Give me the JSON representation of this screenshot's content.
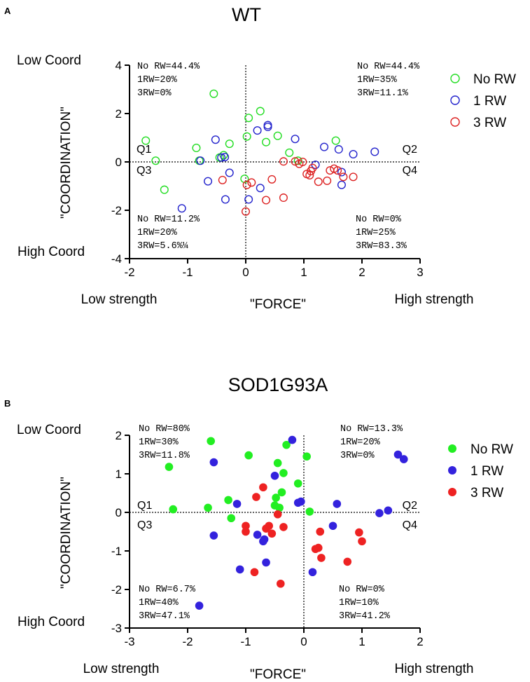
{
  "chart_data": [
    {
      "panel": "A",
      "type": "scatter",
      "title": "WT",
      "marker_style": "open",
      "xlabel": "\"FORCE\"",
      "ylabel": "\"COORDINATION\"",
      "xlim": [
        -2,
        3
      ],
      "ylim": [
        -4,
        4
      ],
      "xticks": [
        "-2",
        "-1",
        "0",
        "1",
        "2",
        "3"
      ],
      "yticks": [
        "-4",
        "-2",
        "0",
        "2",
        "4"
      ],
      "xtick_values": [
        -2,
        -1,
        0,
        1,
        2,
        3
      ],
      "ytick_values": [
        -4,
        -2,
        0,
        2,
        4
      ],
      "left_x_label": "Low strength",
      "right_x_label": "High strength",
      "top_y_label": "Low Coord",
      "bottom_y_label": "High Coord",
      "quadrants": {
        "q1": "Q1",
        "q2": "Q2",
        "q3": "Q3",
        "q4": "Q4"
      },
      "quadrant_stats": {
        "top_left": [
          "No RW=44.4%",
          "1RW=20%",
          "3RW=0%"
        ],
        "top_right": [
          "No RW=44.4%",
          "1RW=35%",
          "3RW=11.1%"
        ],
        "bottom_left": [
          "No RW=11.2%",
          "1RW=20%",
          "3RW=5.6%¼"
        ],
        "bottom_right": [
          "No RW=0%",
          "1RW=25%",
          "3RW=83.3%"
        ]
      },
      "series": [
        {
          "name": "No RW",
          "color": "#22dd22",
          "points": [
            [
              -1.72,
              0.88
            ],
            [
              -1.55,
              0.05
            ],
            [
              -1.4,
              -1.15
            ],
            [
              -0.85,
              0.58
            ],
            [
              -0.8,
              0.05
            ],
            [
              -0.55,
              2.82
            ],
            [
              -0.45,
              0.18
            ],
            [
              -0.38,
              0.28
            ],
            [
              -0.28,
              0.75
            ],
            [
              -0.02,
              -0.7
            ],
            [
              0.02,
              1.05
            ],
            [
              0.05,
              1.82
            ],
            [
              0.25,
              2.1
            ],
            [
              0.35,
              0.82
            ],
            [
              0.55,
              1.08
            ],
            [
              0.75,
              0.38
            ],
            [
              0.9,
              0.05
            ],
            [
              1.55,
              0.88
            ]
          ]
        },
        {
          "name": "1 RW",
          "color": "#2222cc",
          "points": [
            [
              -1.1,
              -1.92
            ],
            [
              -0.65,
              -0.8
            ],
            [
              -0.52,
              0.92
            ],
            [
              -0.42,
              0.18
            ],
            [
              -0.36,
              0.2
            ],
            [
              -0.35,
              -1.55
            ],
            [
              -0.28,
              -0.45
            ],
            [
              -0.78,
              0.05
            ],
            [
              0.05,
              -1.55
            ],
            [
              0.2,
              1.3
            ],
            [
              0.25,
              -1.08
            ],
            [
              0.38,
              1.52
            ],
            [
              0.38,
              1.45
            ],
            [
              0.85,
              0.95
            ],
            [
              1.2,
              -0.12
            ],
            [
              1.35,
              0.62
            ],
            [
              1.6,
              0.52
            ],
            [
              1.65,
              -0.42
            ],
            [
              1.65,
              -0.95
            ],
            [
              1.85,
              0.32
            ],
            [
              2.22,
              0.42
            ]
          ]
        },
        {
          "name": "3 RW",
          "color": "#dd2222",
          "points": [
            [
              -0.4,
              -0.75
            ],
            [
              0.0,
              -2.05
            ],
            [
              0.02,
              -0.95
            ],
            [
              0.1,
              -0.85
            ],
            [
              0.35,
              -1.58
            ],
            [
              0.45,
              -0.72
            ],
            [
              0.65,
              -1.48
            ],
            [
              0.65,
              0.02
            ],
            [
              0.85,
              0.02
            ],
            [
              0.92,
              -0.08
            ],
            [
              0.98,
              0.0
            ],
            [
              1.05,
              -0.5
            ],
            [
              1.1,
              -0.55
            ],
            [
              1.12,
              -0.38
            ],
            [
              1.15,
              -0.25
            ],
            [
              1.25,
              -0.82
            ],
            [
              1.4,
              -0.78
            ],
            [
              1.45,
              -0.35
            ],
            [
              1.52,
              -0.28
            ],
            [
              1.58,
              -0.35
            ],
            [
              1.68,
              -0.62
            ],
            [
              1.85,
              -0.62
            ]
          ]
        }
      ]
    },
    {
      "panel": "B",
      "type": "scatter",
      "title": "SOD1G93A",
      "marker_style": "filled",
      "xlabel": "\"FORCE\"",
      "ylabel": "\"COORDINATION\"",
      "xlim": [
        -3,
        2
      ],
      "ylim": [
        -3,
        2
      ],
      "xticks": [
        "-3",
        "-2",
        "-1",
        "0",
        "1",
        "2"
      ],
      "yticks": [
        "-3",
        "-2",
        "-1",
        "0",
        "1",
        "2"
      ],
      "xtick_values": [
        -3,
        -2,
        -1,
        0,
        1,
        2
      ],
      "ytick_values": [
        -3,
        -2,
        -1,
        0,
        1,
        2
      ],
      "left_x_label": "Low strength",
      "right_x_label": "High strength",
      "top_y_label": "Low Coord",
      "bottom_y_label": "High Coord",
      "quadrants": {
        "q1": "Q1",
        "q2": "Q2",
        "q3": "Q3",
        "q4": "Q4"
      },
      "quadrant_stats": {
        "top_left": [
          "No RW=80%",
          "1RW=30%",
          "3RW=11.8%"
        ],
        "top_right": [
          "No RW=13.3%",
          "1RW=20%",
          "3RW=0%"
        ],
        "bottom_left": [
          "No RW=6.7%",
          "1RW=40%",
          "3RW=47.1%"
        ],
        "bottom_right": [
          "No RW=0%",
          "1RW=10%",
          "3RW=41.2%"
        ]
      },
      "series": [
        {
          "name": "No RW",
          "color": "#22ee22",
          "points": [
            [
              -2.32,
              1.18
            ],
            [
              -2.25,
              0.08
            ],
            [
              -1.65,
              0.12
            ],
            [
              -1.6,
              1.85
            ],
            [
              -1.3,
              0.32
            ],
            [
              -1.25,
              -0.15
            ],
            [
              -0.95,
              1.48
            ],
            [
              -0.5,
              0.18
            ],
            [
              -0.48,
              0.38
            ],
            [
              -0.45,
              1.28
            ],
            [
              -0.42,
              0.12
            ],
            [
              -0.38,
              0.52
            ],
            [
              -0.35,
              1.02
            ],
            [
              -0.1,
              0.75
            ],
            [
              -0.3,
              1.75
            ],
            [
              0.05,
              1.45
            ],
            [
              0.1,
              0.02
            ]
          ]
        },
        {
          "name": "1 RW",
          "color": "#3322dd",
          "points": [
            [
              -1.8,
              -2.42
            ],
            [
              -1.55,
              -0.6
            ],
            [
              -1.55,
              1.3
            ],
            [
              -1.15,
              0.22
            ],
            [
              -1.1,
              -1.48
            ],
            [
              -0.8,
              -0.58
            ],
            [
              -0.7,
              -0.75
            ],
            [
              -0.68,
              -0.7
            ],
            [
              -0.65,
              -1.3
            ],
            [
              -0.5,
              0.95
            ],
            [
              -0.2,
              1.88
            ],
            [
              -0.1,
              0.25
            ],
            [
              -0.05,
              0.28
            ],
            [
              0.15,
              -1.55
            ],
            [
              0.5,
              -0.35
            ],
            [
              0.57,
              0.22
            ],
            [
              1.3,
              -0.02
            ],
            [
              1.45,
              0.05
            ],
            [
              1.62,
              1.5
            ],
            [
              1.72,
              1.38
            ]
          ]
        },
        {
          "name": "3 RW",
          "color": "#ee2222",
          "points": [
            [
              -1.0,
              -0.35
            ],
            [
              -1.0,
              -0.5
            ],
            [
              -0.85,
              -1.55
            ],
            [
              -0.82,
              0.4
            ],
            [
              -0.7,
              0.65
            ],
            [
              -0.65,
              -0.42
            ],
            [
              -0.6,
              -0.35
            ],
            [
              -0.55,
              -0.55
            ],
            [
              -0.45,
              -0.05
            ],
            [
              -0.4,
              -1.85
            ],
            [
              -0.35,
              -0.38
            ],
            [
              0.2,
              -0.95
            ],
            [
              0.25,
              -0.92
            ],
            [
              0.28,
              -0.5
            ],
            [
              0.3,
              -1.18
            ],
            [
              0.75,
              -1.28
            ],
            [
              0.95,
              -0.52
            ],
            [
              1.0,
              -0.75
            ]
          ]
        }
      ]
    }
  ]
}
